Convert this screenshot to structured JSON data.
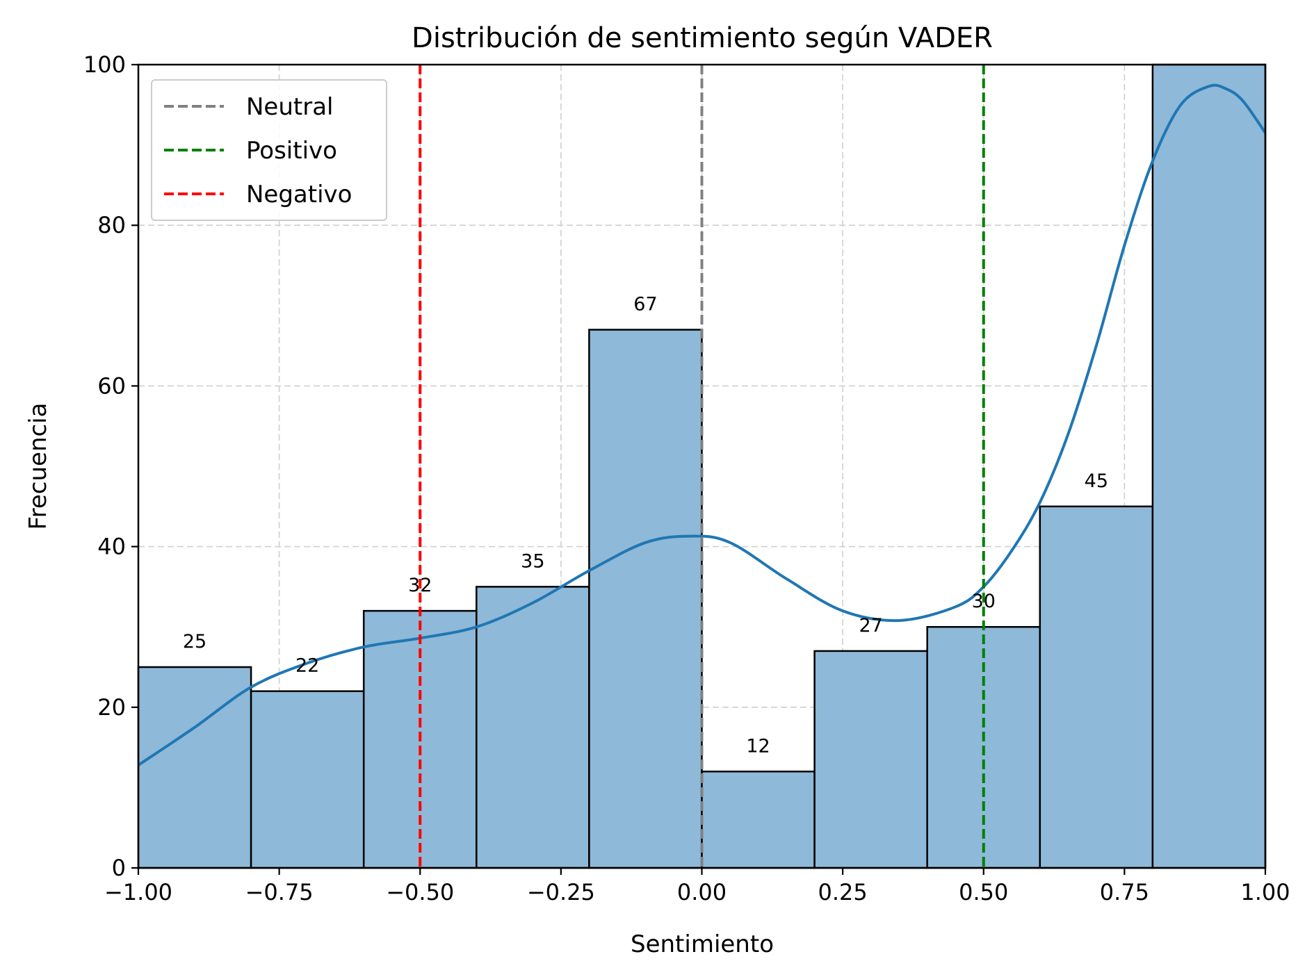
{
  "chart_data": {
    "type": "bar",
    "title": "Distribución de sentimiento según VADER",
    "xlabel": "Sentimiento",
    "ylabel": "Frecuencia",
    "xlim": [
      -1.0,
      1.0
    ],
    "ylim": [
      0,
      100
    ],
    "grid": true,
    "legend_position": "top-left",
    "x_ticks": [
      -1.0,
      -0.75,
      -0.5,
      -0.25,
      0.0,
      0.25,
      0.5,
      0.75,
      1.0
    ],
    "x_tick_labels": [
      "−1.00",
      "−0.75",
      "−0.50",
      "−0.25",
      "0.00",
      "0.25",
      "0.50",
      "0.75",
      "1.00"
    ],
    "y_ticks": [
      0,
      20,
      40,
      60,
      80,
      100
    ],
    "y_tick_labels": [
      "0",
      "20",
      "40",
      "60",
      "80",
      "100"
    ],
    "bins": [
      {
        "start": -1.0,
        "end": -0.8,
        "value": 25,
        "label": "25"
      },
      {
        "start": -0.8,
        "end": -0.6,
        "value": 22,
        "label": "22"
      },
      {
        "start": -0.6,
        "end": -0.4,
        "value": 32,
        "label": "32"
      },
      {
        "start": -0.4,
        "end": -0.2,
        "value": 35,
        "label": "35"
      },
      {
        "start": -0.2,
        "end": 0.0,
        "value": 67,
        "label": "67"
      },
      {
        "start": 0.0,
        "end": 0.2,
        "value": 12,
        "label": "12"
      },
      {
        "start": 0.2,
        "end": 0.4,
        "value": 27,
        "label": "27"
      },
      {
        "start": 0.4,
        "end": 0.6,
        "value": 30,
        "label": "30"
      },
      {
        "start": 0.6,
        "end": 0.8,
        "value": 45,
        "label": "45"
      },
      {
        "start": 0.8,
        "end": 1.0,
        "value": 100,
        "label": ""
      }
    ],
    "bar_color": "#8fb9d8",
    "kde": {
      "color": "#1f77b4",
      "x": [
        -1.0,
        -0.9,
        -0.8,
        -0.7,
        -0.6,
        -0.5,
        -0.4,
        -0.3,
        -0.2,
        -0.1,
        -0.02,
        0.05,
        0.15,
        0.25,
        0.35,
        0.45,
        0.5,
        0.55,
        0.6,
        0.65,
        0.7,
        0.75,
        0.8,
        0.85,
        0.9,
        0.93,
        0.96,
        1.0
      ],
      "y": [
        12.8,
        17.5,
        22.5,
        25.5,
        27.5,
        28.6,
        30.0,
        33.0,
        37.0,
        40.5,
        41.3,
        40.5,
        36.0,
        32.0,
        30.8,
        32.5,
        35.0,
        39.5,
        45.5,
        54.0,
        65.0,
        77.5,
        88.0,
        95.0,
        97.3,
        97.0,
        95.5,
        91.5
      ]
    },
    "reference_lines": [
      {
        "name": "Neutral",
        "x": 0.0,
        "color": "#808080"
      },
      {
        "name": "Positivo",
        "x": 0.5,
        "color": "#008000"
      },
      {
        "name": "Negativo",
        "x": -0.5,
        "color": "#ff0000"
      }
    ]
  }
}
